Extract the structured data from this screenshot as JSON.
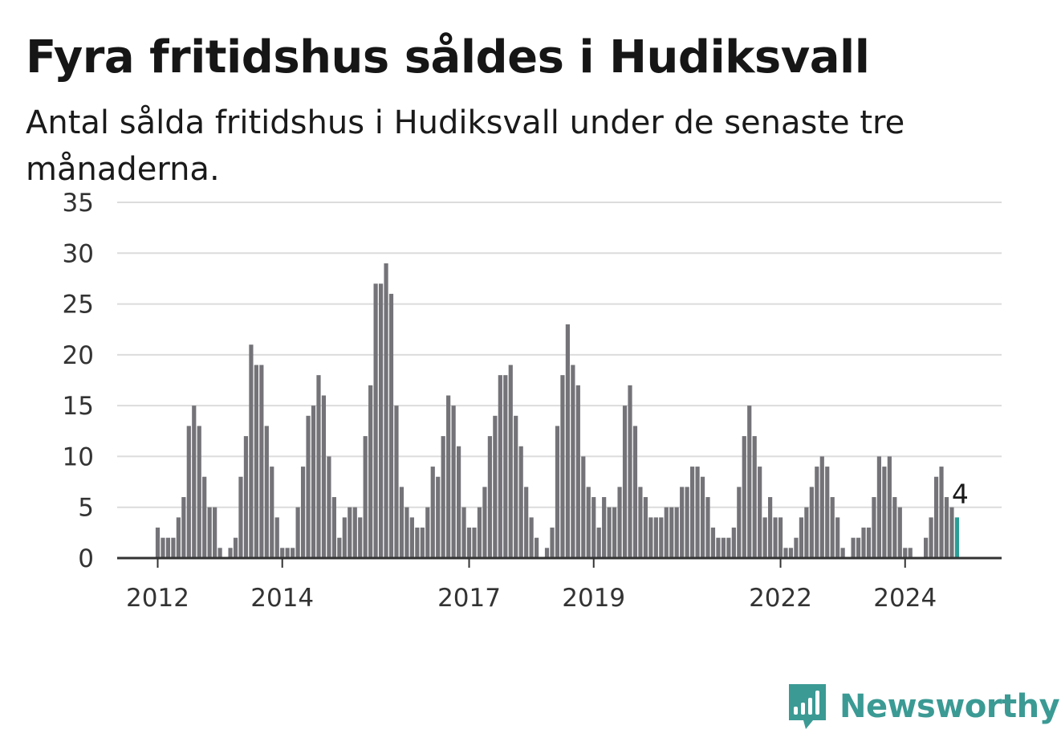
{
  "title": "Fyra fritidshus såldes i Hudiksvall",
  "subtitle": "Antal sålda fritidshus i Hudiksvall under de senaste tre månaderna.",
  "brand": {
    "name": "Newsworthy",
    "icon": "bar-chart-speech-bubble-icon",
    "color": "#3b9a94"
  },
  "colors": {
    "bar": "#747378",
    "highlight": "#2a9d96",
    "grid": "#dcdcdc",
    "axis": "#333333"
  },
  "chart_data": {
    "type": "bar",
    "ylim": [
      0,
      35
    ],
    "yticks": [
      "0",
      "5",
      "10",
      "15",
      "20",
      "25",
      "30",
      "35"
    ],
    "grid": true,
    "start": "2012-01",
    "xticks": [
      {
        "label": "2012",
        "month": "2012-01"
      },
      {
        "label": "2014",
        "month": "2014-01"
      },
      {
        "label": "2017",
        "month": "2017-01"
      },
      {
        "label": "2019",
        "month": "2019-01"
      },
      {
        "label": "2022",
        "month": "2022-01"
      },
      {
        "label": "2024",
        "month": "2024-01"
      }
    ],
    "values": [
      3,
      2,
      2,
      2,
      4,
      6,
      13,
      15,
      13,
      8,
      5,
      5,
      1,
      0,
      1,
      2,
      8,
      12,
      21,
      19,
      19,
      13,
      9,
      4,
      1,
      1,
      1,
      5,
      9,
      14,
      15,
      18,
      16,
      10,
      6,
      2,
      4,
      5,
      5,
      4,
      12,
      17,
      27,
      27,
      29,
      26,
      15,
      7,
      5,
      4,
      3,
      3,
      5,
      9,
      8,
      12,
      16,
      15,
      11,
      5,
      3,
      3,
      5,
      7,
      12,
      14,
      18,
      18,
      19,
      14,
      11,
      7,
      4,
      2,
      0,
      1,
      3,
      13,
      18,
      23,
      19,
      17,
      10,
      7,
      6,
      3,
      6,
      5,
      5,
      7,
      15,
      17,
      13,
      7,
      6,
      4,
      4,
      4,
      5,
      5,
      5,
      7,
      7,
      9,
      9,
      8,
      6,
      3,
      2,
      2,
      2,
      3,
      7,
      12,
      15,
      12,
      9,
      4,
      6,
      4,
      4,
      1,
      1,
      2,
      4,
      5,
      7,
      9,
      10,
      9,
      6,
      4,
      1,
      0,
      2,
      2,
      3,
      3,
      6,
      10,
      9,
      10,
      6,
      5,
      1,
      1,
      0,
      0,
      2,
      4,
      8,
      9,
      6,
      5,
      4
    ],
    "highlight_last": true,
    "last_label": "4"
  }
}
